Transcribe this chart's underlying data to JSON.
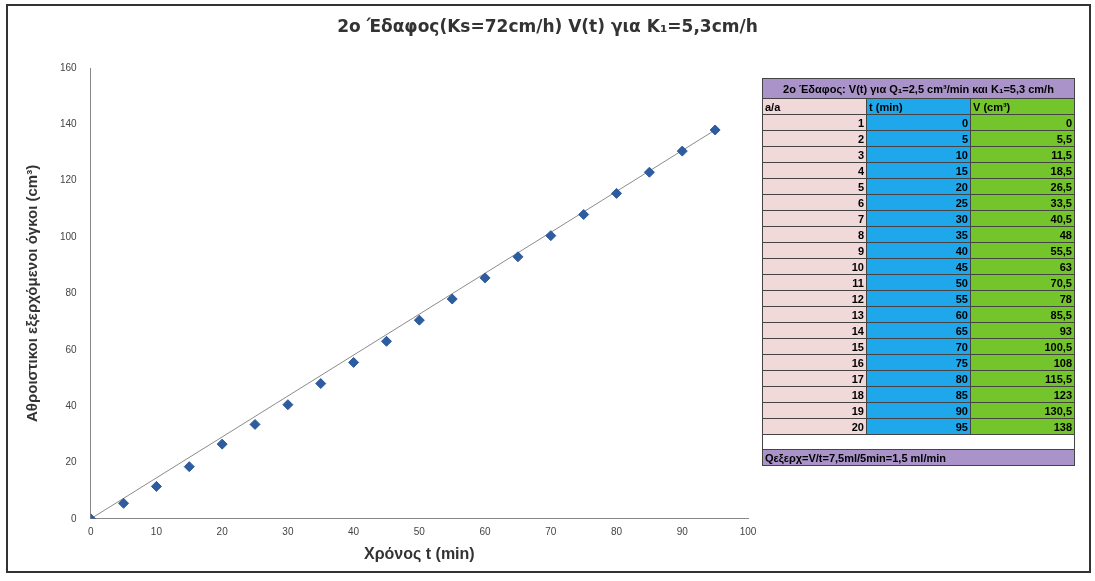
{
  "chart_data": [
    {
      "type": "scatter",
      "title": "2ο Έδαφος(Ks=72cm/h) V(t) για K₁=5,3cm/h",
      "xlabel": "Χρόνος t (min)",
      "ylabel": "Αθροιστικοι εξερχόμενοι όγκοι (cm³)",
      "x": [
        0,
        5,
        10,
        15,
        20,
        25,
        30,
        35,
        40,
        45,
        50,
        55,
        60,
        65,
        70,
        75,
        80,
        85,
        90,
        95
      ],
      "series": [
        {
          "type": "scatter",
          "color": "#2e5c9e",
          "marker": "diamond",
          "values": [
            0,
            5.5,
            11.5,
            18.5,
            26.5,
            33.5,
            40.5,
            48,
            55.5,
            63,
            70.5,
            78,
            85.5,
            93,
            100.5,
            108,
            115.5,
            123,
            130.5,
            138
          ]
        },
        {
          "type": "line",
          "color": "#8c8c8c",
          "marker": "none",
          "x": [
            0,
            95
          ],
          "values": [
            0,
            138
          ]
        }
      ],
      "xlim": [
        0,
        100
      ],
      "xticks": [
        0,
        10,
        20,
        30,
        40,
        50,
        60,
        70,
        80,
        90,
        100
      ],
      "ylim": [
        0,
        160
      ],
      "yticks": [
        0,
        20,
        40,
        60,
        80,
        100,
        120,
        140,
        160
      ],
      "grid": false,
      "legend": false
    },
    {
      "type": "other",
      "title": "2ο Έδαφος: V(t) για Q₁=2,5 cm³/min και K₁=5,3 cm/h",
      "annotations": [
        "a/a",
        "t (min)",
        "V (cm³)",
        "1",
        "0",
        "0",
        "2",
        "5",
        "5,5",
        "3",
        "10",
        "11,5",
        "4",
        "15",
        "18,5",
        "5",
        "20",
        "26,5",
        "6",
        "25",
        "33,5",
        "7",
        "30",
        "40,5",
        "8",
        "35",
        "48",
        "9",
        "40",
        "55,5",
        "10",
        "45",
        "63",
        "11",
        "50",
        "70,5",
        "12",
        "55",
        "78",
        "13",
        "60",
        "85,5",
        "14",
        "65",
        "93",
        "15",
        "70",
        "100,5",
        "16",
        "75",
        "108",
        "17",
        "80",
        "115,5",
        "18",
        "85",
        "123",
        "19",
        "90",
        "130,5",
        "20",
        "95",
        "138",
        "Qεξερχ=V/t=7,5ml/5min=1,5 ml/min"
      ]
    }
  ]
}
